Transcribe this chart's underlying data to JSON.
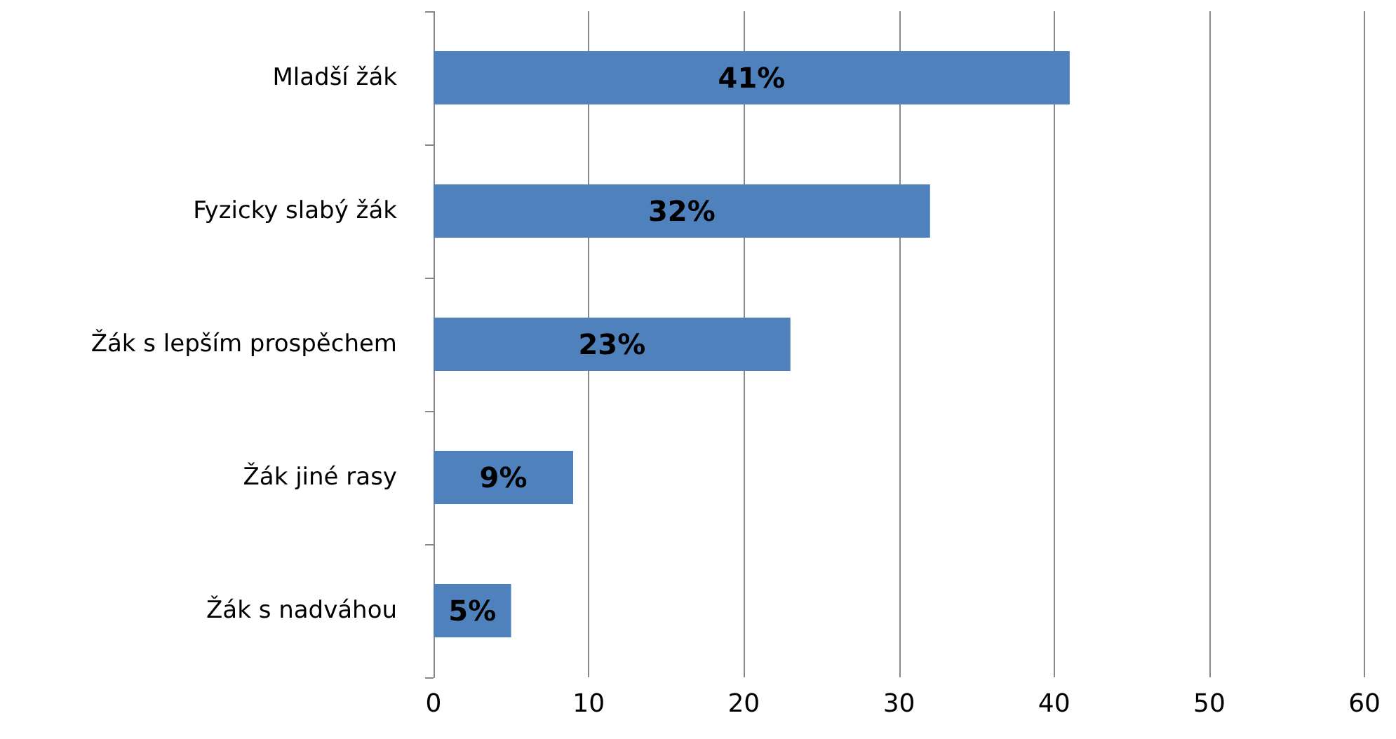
{
  "chart_data": {
    "type": "bar",
    "orientation": "horizontal",
    "categories": [
      "Mladší žák",
      "Fyzicky slabý žák",
      "Žák s lepším prospěchem",
      "Žák jiné rasy",
      "Žák s nadváhou"
    ],
    "values": [
      41,
      32,
      23,
      9,
      5
    ],
    "value_labels": [
      "41%",
      "32%",
      "23%",
      "9%",
      "5%"
    ],
    "color": "#4f81bd",
    "xlim": [
      0,
      60
    ],
    "xticks": [
      0,
      10,
      20,
      30,
      40,
      50,
      60
    ],
    "grid": "x"
  }
}
